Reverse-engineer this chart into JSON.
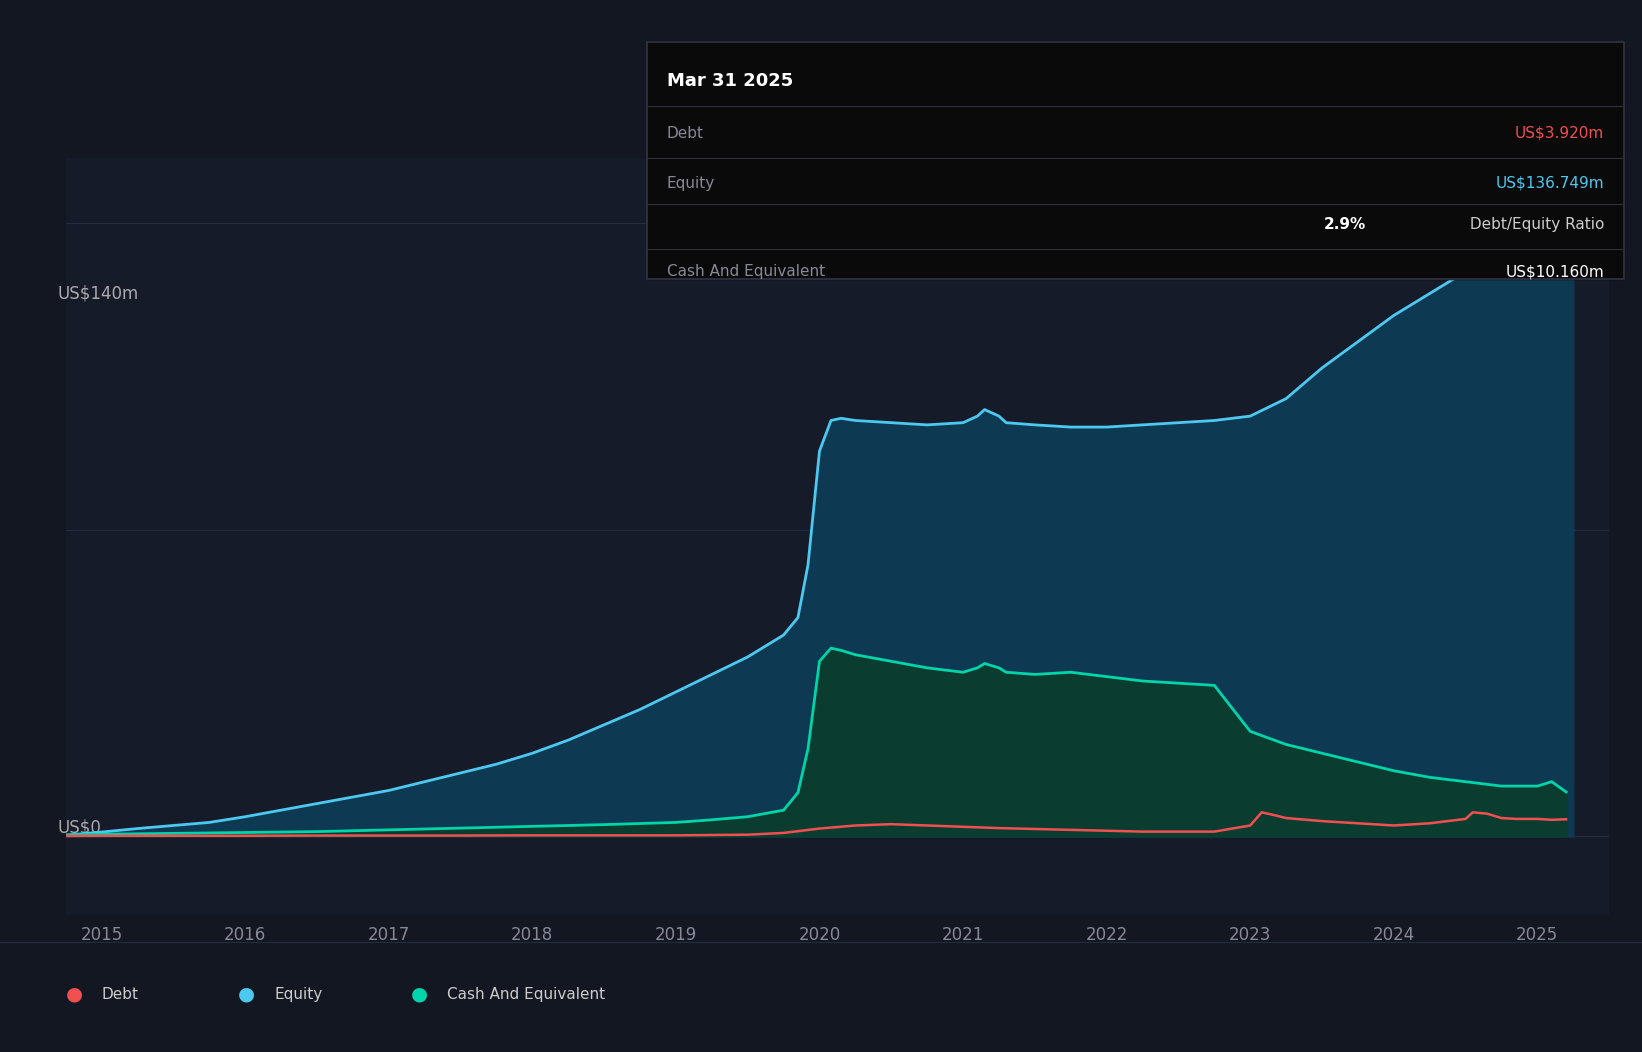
{
  "background_color": "#131722",
  "plot_bg_color": "#161b2a",
  "grid_color": "#252d3d",
  "ylabel": "US$140m",
  "ylabel_zero": "US$0",
  "tooltip_title": "Mar 31 2025",
  "tooltip_debt_label": "Debt",
  "tooltip_debt_value": "US$3.920m",
  "tooltip_equity_label": "Equity",
  "tooltip_equity_value": "US$136.749m",
  "tooltip_ratio": "2.9% Debt/Equity Ratio",
  "tooltip_cash_label": "Cash And Equivalent",
  "tooltip_cash_value": "US$10.160m",
  "debt_color": "#f05050",
  "equity_color": "#4dc8f0",
  "cash_color": "#00d4aa",
  "equity_fill_color": "#0d3a52",
  "cash_fill_color": "#0a3d30",
  "xmin": 2014.75,
  "xmax": 2025.5,
  "ymin": -18,
  "ymax": 155,
  "yticks": [
    0,
    70,
    140
  ],
  "years": [
    2015,
    2016,
    2017,
    2018,
    2019,
    2020,
    2021,
    2022,
    2023,
    2024,
    2025
  ],
  "equity_data": [
    [
      2014.75,
      0.3
    ],
    [
      2015.0,
      1.0
    ],
    [
      2015.25,
      1.8
    ],
    [
      2015.5,
      2.5
    ],
    [
      2015.75,
      3.2
    ],
    [
      2016.0,
      4.5
    ],
    [
      2016.25,
      6.0
    ],
    [
      2016.5,
      7.5
    ],
    [
      2016.75,
      9.0
    ],
    [
      2017.0,
      10.5
    ],
    [
      2017.25,
      12.5
    ],
    [
      2017.5,
      14.5
    ],
    [
      2017.75,
      16.5
    ],
    [
      2018.0,
      19.0
    ],
    [
      2018.25,
      22.0
    ],
    [
      2018.5,
      25.5
    ],
    [
      2018.75,
      29.0
    ],
    [
      2019.0,
      33.0
    ],
    [
      2019.25,
      37.0
    ],
    [
      2019.5,
      41.0
    ],
    [
      2019.75,
      46.0
    ],
    [
      2019.85,
      50.0
    ],
    [
      2019.92,
      62.0
    ],
    [
      2020.0,
      88.0
    ],
    [
      2020.08,
      95.0
    ],
    [
      2020.15,
      95.5
    ],
    [
      2020.25,
      95.0
    ],
    [
      2020.5,
      94.5
    ],
    [
      2020.75,
      94.0
    ],
    [
      2021.0,
      94.5
    ],
    [
      2021.1,
      96.0
    ],
    [
      2021.15,
      97.5
    ],
    [
      2021.25,
      96.0
    ],
    [
      2021.3,
      94.5
    ],
    [
      2021.5,
      94.0
    ],
    [
      2021.75,
      93.5
    ],
    [
      2022.0,
      93.5
    ],
    [
      2022.25,
      94.0
    ],
    [
      2022.5,
      94.5
    ],
    [
      2022.75,
      95.0
    ],
    [
      2023.0,
      96.0
    ],
    [
      2023.25,
      100.0
    ],
    [
      2023.5,
      107.0
    ],
    [
      2023.75,
      113.0
    ],
    [
      2024.0,
      119.0
    ],
    [
      2024.25,
      124.0
    ],
    [
      2024.5,
      129.0
    ],
    [
      2024.75,
      133.0
    ],
    [
      2025.0,
      136.7
    ],
    [
      2025.25,
      137.0
    ]
  ],
  "debt_data": [
    [
      2014.75,
      0.1
    ],
    [
      2015.0,
      0.15
    ],
    [
      2015.5,
      0.15
    ],
    [
      2016.0,
      0.15
    ],
    [
      2016.5,
      0.2
    ],
    [
      2017.0,
      0.2
    ],
    [
      2017.5,
      0.2
    ],
    [
      2018.0,
      0.25
    ],
    [
      2018.5,
      0.25
    ],
    [
      2019.0,
      0.25
    ],
    [
      2019.5,
      0.4
    ],
    [
      2019.75,
      0.8
    ],
    [
      2020.0,
      1.8
    ],
    [
      2020.25,
      2.5
    ],
    [
      2020.5,
      2.8
    ],
    [
      2020.75,
      2.5
    ],
    [
      2021.0,
      2.2
    ],
    [
      2021.25,
      1.9
    ],
    [
      2021.5,
      1.7
    ],
    [
      2021.75,
      1.5
    ],
    [
      2022.0,
      1.3
    ],
    [
      2022.25,
      1.1
    ],
    [
      2022.5,
      1.1
    ],
    [
      2022.75,
      1.1
    ],
    [
      2023.0,
      2.5
    ],
    [
      2023.08,
      5.5
    ],
    [
      2023.15,
      5.0
    ],
    [
      2023.25,
      4.2
    ],
    [
      2023.5,
      3.5
    ],
    [
      2023.75,
      3.0
    ],
    [
      2024.0,
      2.5
    ],
    [
      2024.25,
      3.0
    ],
    [
      2024.5,
      4.0
    ],
    [
      2024.55,
      5.5
    ],
    [
      2024.65,
      5.2
    ],
    [
      2024.75,
      4.2
    ],
    [
      2024.85,
      4.0
    ],
    [
      2025.0,
      4.0
    ],
    [
      2025.1,
      3.8
    ],
    [
      2025.2,
      3.92
    ]
  ],
  "cash_data": [
    [
      2014.75,
      0.3
    ],
    [
      2015.0,
      0.5
    ],
    [
      2015.5,
      0.7
    ],
    [
      2016.0,
      0.9
    ],
    [
      2016.5,
      1.1
    ],
    [
      2017.0,
      1.5
    ],
    [
      2017.5,
      1.9
    ],
    [
      2018.0,
      2.3
    ],
    [
      2018.5,
      2.7
    ],
    [
      2019.0,
      3.2
    ],
    [
      2019.25,
      3.8
    ],
    [
      2019.5,
      4.5
    ],
    [
      2019.75,
      6.0
    ],
    [
      2019.85,
      10.0
    ],
    [
      2019.92,
      20.0
    ],
    [
      2020.0,
      40.0
    ],
    [
      2020.08,
      43.0
    ],
    [
      2020.15,
      42.5
    ],
    [
      2020.25,
      41.5
    ],
    [
      2020.5,
      40.0
    ],
    [
      2020.75,
      38.5
    ],
    [
      2021.0,
      37.5
    ],
    [
      2021.1,
      38.5
    ],
    [
      2021.15,
      39.5
    ],
    [
      2021.25,
      38.5
    ],
    [
      2021.3,
      37.5
    ],
    [
      2021.5,
      37.0
    ],
    [
      2021.75,
      37.5
    ],
    [
      2022.0,
      36.5
    ],
    [
      2022.25,
      35.5
    ],
    [
      2022.5,
      35.0
    ],
    [
      2022.75,
      34.5
    ],
    [
      2023.0,
      24.0
    ],
    [
      2023.25,
      21.0
    ],
    [
      2023.5,
      19.0
    ],
    [
      2023.75,
      17.0
    ],
    [
      2024.0,
      15.0
    ],
    [
      2024.25,
      13.5
    ],
    [
      2024.5,
      12.5
    ],
    [
      2024.75,
      11.5
    ],
    [
      2025.0,
      11.5
    ],
    [
      2025.1,
      12.5
    ],
    [
      2025.2,
      10.16
    ]
  ]
}
